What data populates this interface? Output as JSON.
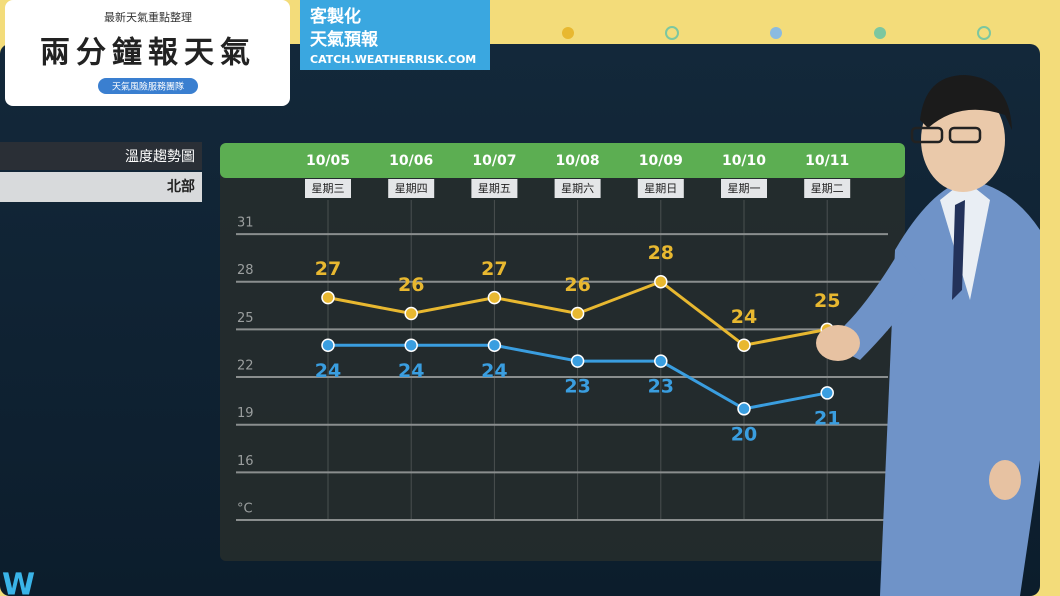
{
  "header": {
    "logo_top": "最新天氣重點整理",
    "logo_main": "兩分鐘報天氣",
    "logo_pill": "天氣風險服務團隊",
    "banner_line1": "客製化",
    "banner_line2": "天氣預報",
    "banner_url": "CATCH.WEATHERRISK.COM"
  },
  "chart_data": {
    "type": "line",
    "title": "溫度趨勢圖",
    "subtitle": "北部",
    "categories": [
      "10/05",
      "10/06",
      "10/07",
      "10/08",
      "10/09",
      "10/10",
      "10/11"
    ],
    "weekdays": [
      "星期三",
      "星期四",
      "星期五",
      "星期六",
      "星期日",
      "星期一",
      "星期二"
    ],
    "series": [
      {
        "color": "#e8b830",
        "values": [
          27,
          26,
          27,
          26,
          28,
          24,
          25
        ]
      },
      {
        "color": "#3a9ee0",
        "values": [
          24,
          24,
          24,
          23,
          23,
          20,
          21
        ]
      }
    ],
    "ylim": [
      13,
      32.2
    ],
    "yticks": [
      {
        "value": 13,
        "label": "°C"
      },
      16,
      19,
      22,
      25,
      28,
      31
    ],
    "grid": true
  }
}
